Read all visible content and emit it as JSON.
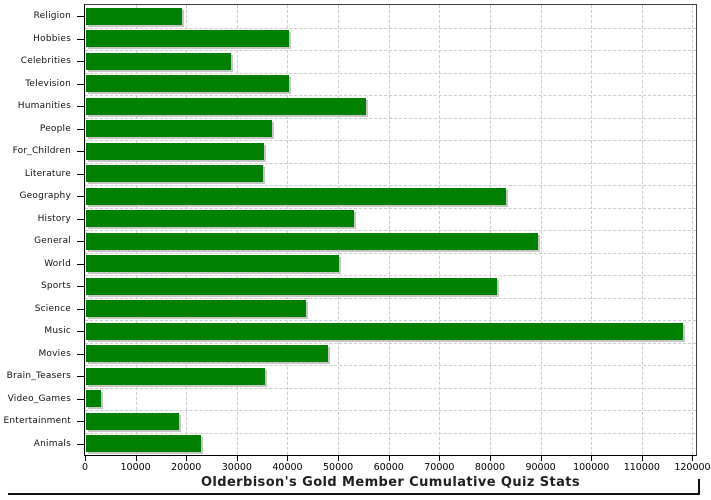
{
  "chart_data": {
    "type": "bar",
    "orientation": "horizontal",
    "title": "Olderbison's Gold Member Cumulative Quiz Stats",
    "categories": [
      "Religion",
      "Hobbies",
      "Celebrities",
      "Television",
      "Humanities",
      "People",
      "For_Children",
      "Literature",
      "Geography",
      "History",
      "General",
      "World",
      "Sports",
      "Science",
      "Music",
      "Movies",
      "Brain_Teasers",
      "Video_Games",
      "Entertainment",
      "Animals"
    ],
    "values": [
      18900,
      40200,
      28600,
      40200,
      55300,
      36800,
      35100,
      34900,
      82900,
      53000,
      89200,
      49900,
      81100,
      43500,
      117900,
      47800,
      35400,
      3000,
      18300,
      22800
    ],
    "x_tick_values": [
      0,
      10000,
      20000,
      30000,
      40000,
      50000,
      60000,
      70000,
      80000,
      90000,
      100000,
      110000,
      120000
    ],
    "x_tick_labels": [
      "0",
      "10000",
      "20000",
      "30000",
      "40000",
      "50000",
      "60000",
      "70000",
      "80000",
      "90000",
      "100000",
      "110000",
      "120000"
    ],
    "xlim": [
      0,
      120700
    ],
    "xlabel": "",
    "ylabel": "",
    "grid": true,
    "legend": "none",
    "bar_color": "#008000",
    "gridline_color": "#cccccc",
    "shadow_color": "#c6c6c6",
    "axis_color": "#000000",
    "title_color": "#1f1f1f"
  }
}
